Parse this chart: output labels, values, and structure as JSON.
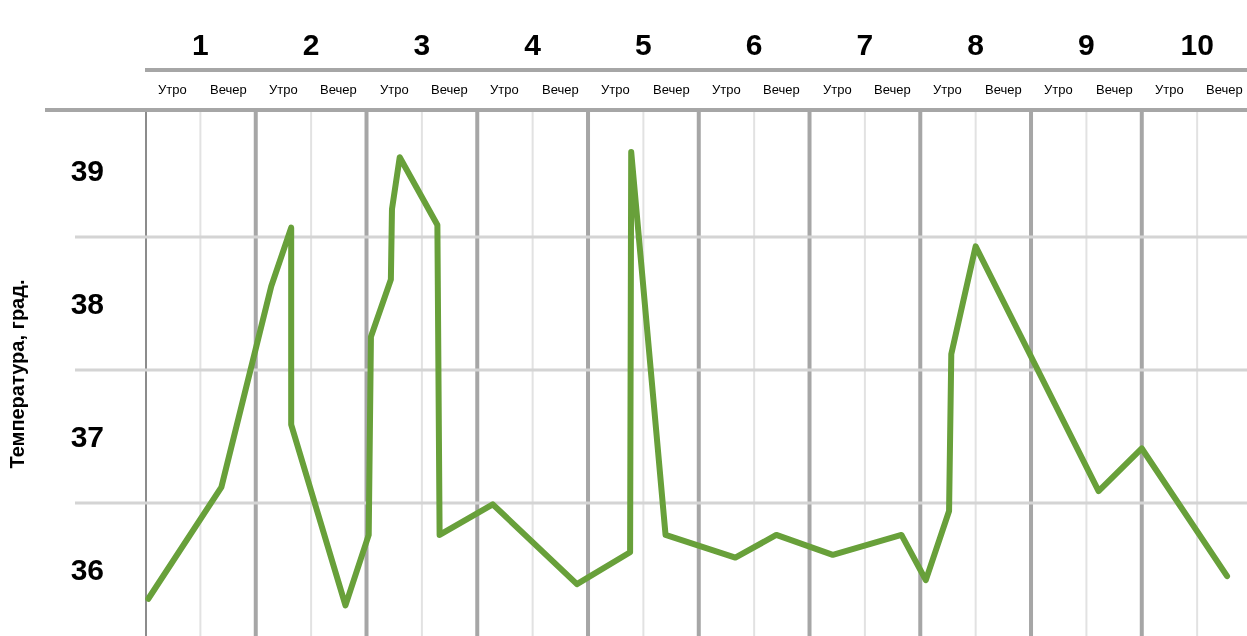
{
  "chart_data": {
    "type": "line",
    "ylabel": "Температура, град.",
    "annotations": [
      "Утро",
      "Вечер",
      "Утро",
      "Вечер",
      "Утро",
      "Вечер",
      "Утро",
      "Вечер",
      "Утро",
      "Вечер",
      "Утро",
      "Вечер",
      "Утро",
      "Вечер",
      "Утро",
      "Вечер",
      "Утро",
      "Вечер",
      "Утро",
      "Вечер"
    ],
    "x": [
      0.53,
      1.19,
      1.64,
      1.82,
      1.82,
      2.31,
      2.52,
      2.54,
      2.72,
      2.73,
      2.8,
      3.14,
      3.16,
      3.64,
      4.4,
      4.88,
      4.89,
      5.2,
      5.83,
      6.2,
      6.71,
      7.33,
      7.55,
      7.76,
      7.78,
      8.0,
      9.11,
      9.5,
      10.27
    ],
    "values": [
      35.78,
      36.62,
      38.13,
      38.57,
      37.09,
      35.73,
      36.26,
      37.75,
      38.18,
      38.71,
      39.1,
      38.59,
      36.26,
      36.49,
      35.89,
      36.13,
      39.14,
      36.26,
      36.09,
      36.26,
      36.11,
      36.26,
      35.92,
      36.44,
      37.62,
      38.43,
      36.59,
      36.91,
      35.95
    ],
    "color": "#68a03a",
    "marker": "none",
    "line_style": "solid",
    "grid": true,
    "xlim": [
      0.5,
      10.45
    ],
    "xticks": [
      {
        "value": 0.5,
        "label": null
      },
      1,
      {
        "value": 1.5,
        "label": null
      },
      2,
      {
        "value": 2.5,
        "label": null
      },
      3,
      {
        "value": 3.5,
        "label": null
      },
      4,
      {
        "value": 4.5,
        "label": null
      },
      5,
      {
        "value": 5.5,
        "label": null
      },
      6,
      {
        "value": 6.5,
        "label": null
      },
      7,
      {
        "value": 7.5,
        "label": null
      },
      8,
      {
        "value": 8.5,
        "label": null
      },
      9,
      {
        "value": 9.5,
        "label": null
      },
      10
    ],
    "ylim": [
      35.5,
      39.44
    ],
    "yticks": [
      36,
      {
        "value": 36.5,
        "label": null
      },
      37,
      {
        "value": 37.5,
        "label": null
      },
      38,
      {
        "value": 38.5,
        "label": null
      },
      39
    ]
  }
}
